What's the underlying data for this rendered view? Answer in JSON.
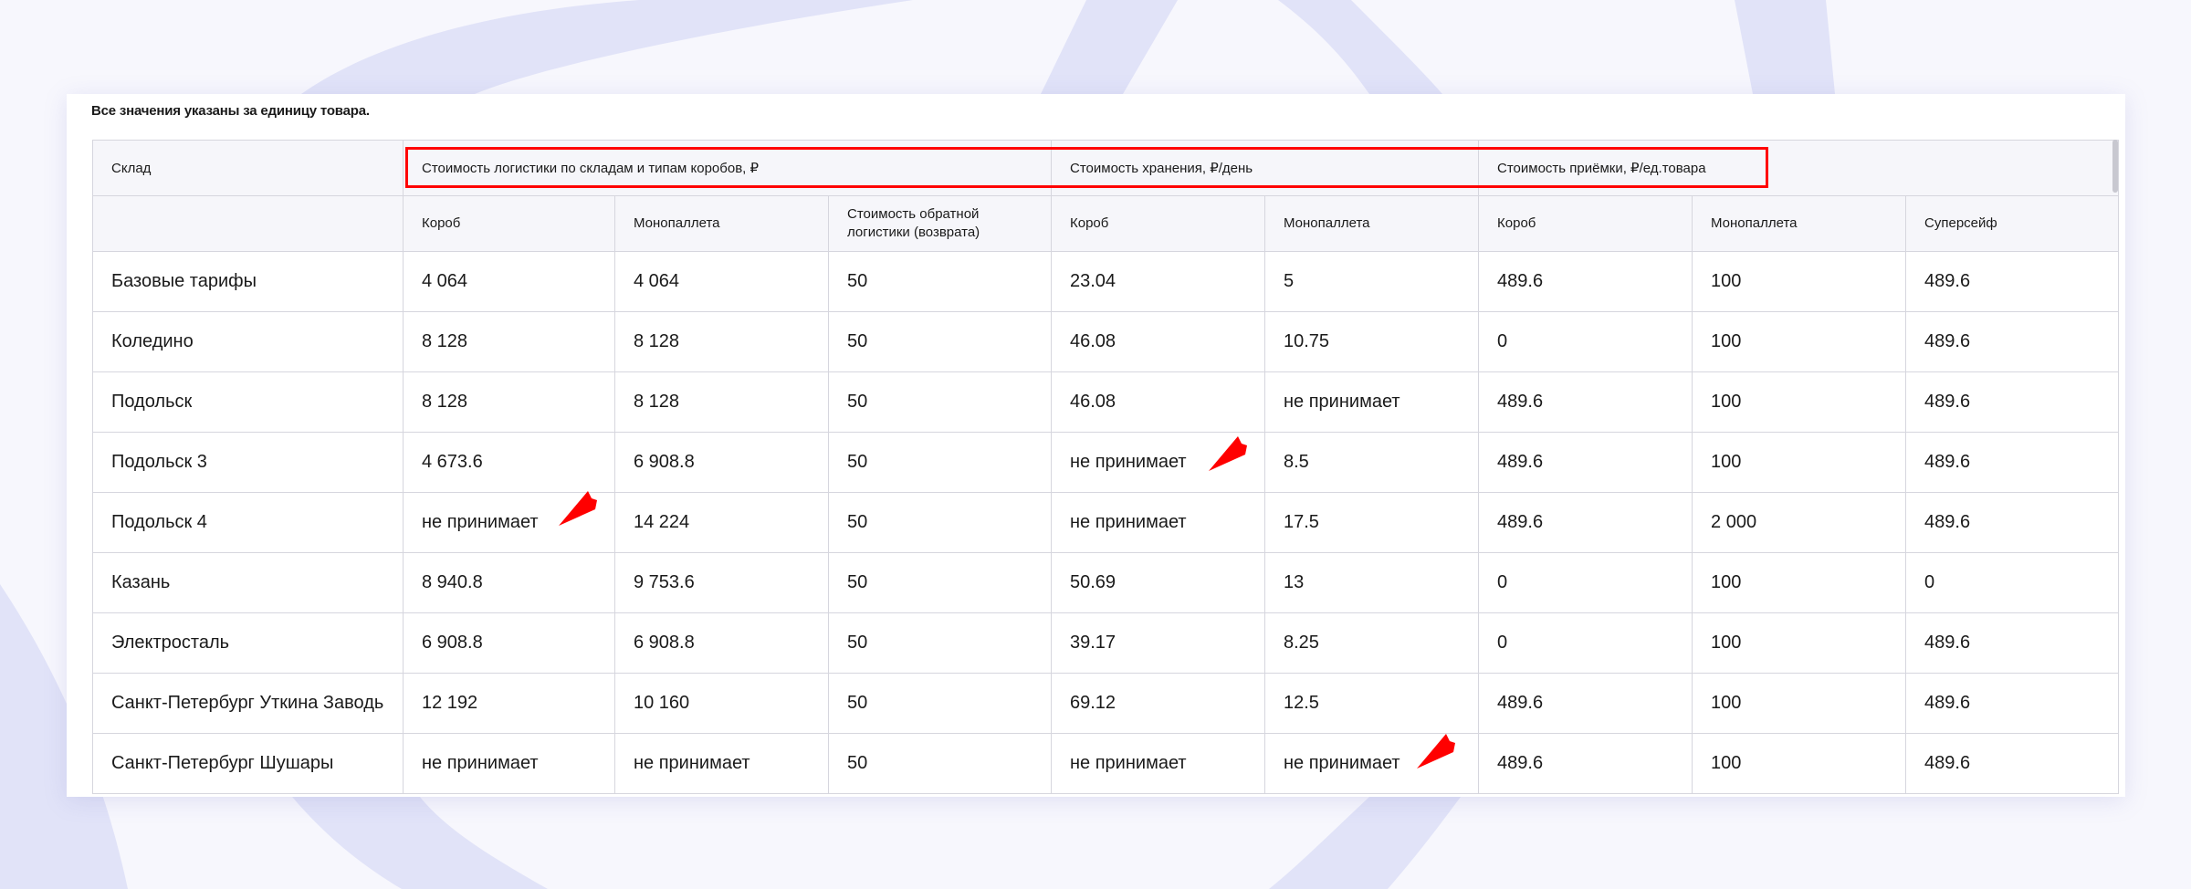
{
  "note": "Все значения указаны за единицу товара.",
  "header": {
    "warehouse": "Склад",
    "groups": [
      "Стоимость логистики по складам и типам коробов, ₽",
      "Стоимость хранения, ₽/день",
      "Стоимость приёмки, ₽/ед.товара"
    ],
    "subcolumns": [
      "Короб",
      "Монопаллета",
      "Стоимость обратной логистики (возврата)",
      "Короб",
      "Монопаллета",
      "Короб",
      "Монопаллета",
      "Суперсейф"
    ]
  },
  "rows": [
    [
      "Базовые тарифы",
      "4 064",
      "4 064",
      "50",
      "23.04",
      "5",
      "489.6",
      "100",
      "489.6"
    ],
    [
      "Коледино",
      "8 128",
      "8 128",
      "50",
      "46.08",
      "10.75",
      "0",
      "100",
      "489.6"
    ],
    [
      "Подольск",
      "8 128",
      "8 128",
      "50",
      "46.08",
      "не принимает",
      "489.6",
      "100",
      "489.6"
    ],
    [
      "Подольск 3",
      "4 673.6",
      "6 908.8",
      "50",
      "не принимает",
      "8.5",
      "489.6",
      "100",
      "489.6"
    ],
    [
      "Подольск 4",
      "не принимает",
      "14 224",
      "50",
      "не принимает",
      "17.5",
      "489.6",
      "2 000",
      "489.6"
    ],
    [
      "Казань",
      "8 940.8",
      "9 753.6",
      "50",
      "50.69",
      "13",
      "0",
      "100",
      "0"
    ],
    [
      "Электросталь",
      "6 908.8",
      "6 908.8",
      "50",
      "39.17",
      "8.25",
      "0",
      "100",
      "489.6"
    ],
    [
      "Санкт-Петербург Уткина Заводь",
      "12 192",
      "10 160",
      "50",
      "69.12",
      "12.5",
      "489.6",
      "100",
      "489.6"
    ],
    [
      "Санкт-Петербург Шушары",
      "не принимает",
      "не принимает",
      "50",
      "не принимает",
      "не принимает",
      "489.6",
      "100",
      "489.6"
    ]
  ],
  "colors": {
    "highlight": "#ff0000",
    "background_shape": "#e1e3f8",
    "header_bg": "#f6f6fa",
    "border": "#d6d6de"
  }
}
